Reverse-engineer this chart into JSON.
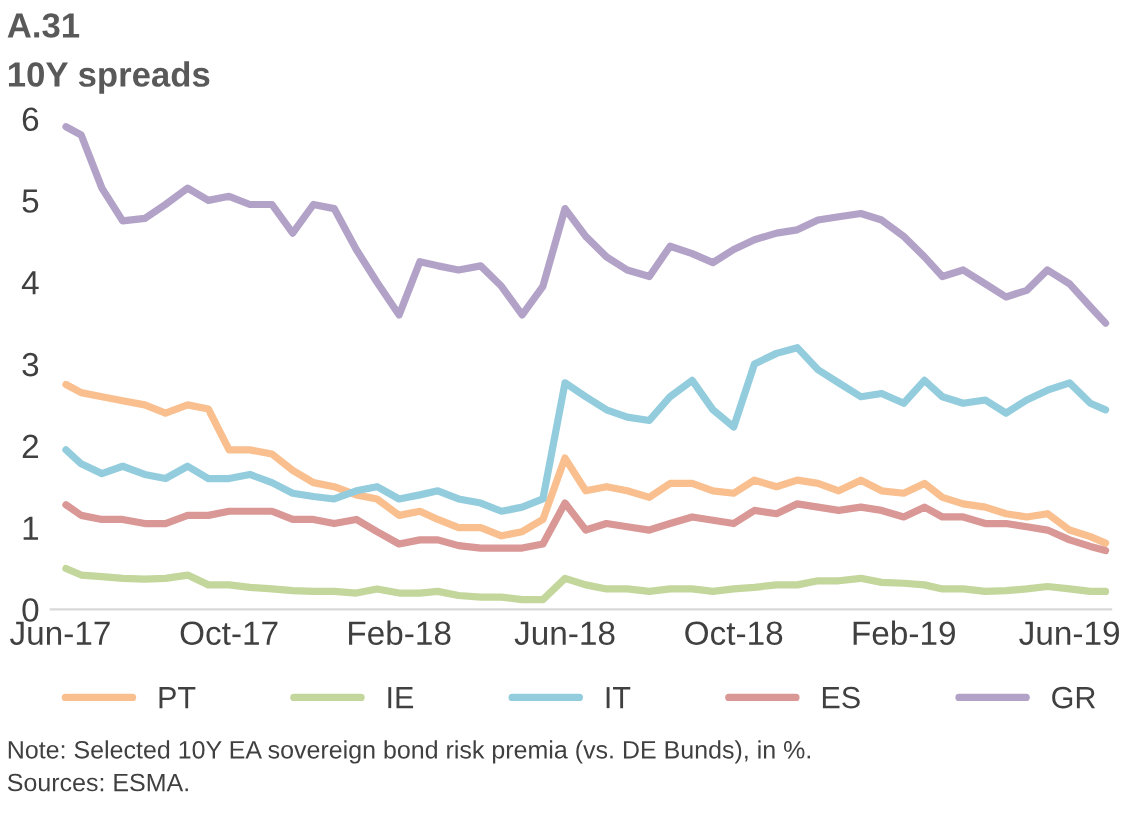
{
  "chart_data": {
    "type": "line",
    "title": "A.31",
    "subtitle": "10Y spreads",
    "x": [
      "2017-06-05",
      "2017-06-16",
      "2017-07-01",
      "2017-07-16",
      "2017-08-01",
      "2017-08-16",
      "2017-09-01",
      "2017-09-16",
      "2017-10-01",
      "2017-10-16",
      "2017-11-01",
      "2017-11-16",
      "2017-12-01",
      "2017-12-16",
      "2018-01-01",
      "2018-01-16",
      "2018-02-01",
      "2018-02-16",
      "2018-03-01",
      "2018-03-16",
      "2018-04-01",
      "2018-04-16",
      "2018-05-01",
      "2018-05-16",
      "2018-06-01",
      "2018-06-16",
      "2018-07-01",
      "2018-07-16",
      "2018-08-01",
      "2018-08-16",
      "2018-09-01",
      "2018-09-16",
      "2018-10-01",
      "2018-10-16",
      "2018-11-01",
      "2018-11-16",
      "2018-12-01",
      "2018-12-16",
      "2019-01-01",
      "2019-01-16",
      "2019-02-01",
      "2019-02-16",
      "2019-03-01",
      "2019-03-16",
      "2019-04-01",
      "2019-04-16",
      "2019-05-01",
      "2019-05-16",
      "2019-06-01",
      "2019-06-16",
      "2019-06-27"
    ],
    "series": [
      {
        "name": "PT",
        "color": "#f9bf8f",
        "values": [
          2.75,
          2.65,
          2.6,
          2.55,
          2.5,
          2.4,
          2.5,
          2.45,
          1.95,
          1.95,
          1.9,
          1.7,
          1.55,
          1.5,
          1.4,
          1.35,
          1.15,
          1.2,
          1.1,
          1.0,
          1.0,
          0.9,
          0.95,
          1.1,
          1.85,
          1.45,
          1.5,
          1.45,
          1.37,
          1.54,
          1.54,
          1.45,
          1.42,
          1.58,
          1.5,
          1.58,
          1.54,
          1.45,
          1.58,
          1.45,
          1.42,
          1.54,
          1.37,
          1.29,
          1.25,
          1.17,
          1.13,
          1.17,
          0.97,
          0.89,
          0.81
        ]
      },
      {
        "name": "IE",
        "color": "#c3d69b",
        "values": [
          0.5,
          0.42,
          0.4,
          0.38,
          0.37,
          0.38,
          0.42,
          0.3,
          0.3,
          0.27,
          0.25,
          0.23,
          0.22,
          0.22,
          0.2,
          0.25,
          0.2,
          0.2,
          0.22,
          0.17,
          0.15,
          0.15,
          0.12,
          0.12,
          0.38,
          0.3,
          0.25,
          0.25,
          0.22,
          0.25,
          0.25,
          0.22,
          0.25,
          0.27,
          0.3,
          0.3,
          0.35,
          0.35,
          0.38,
          0.33,
          0.32,
          0.3,
          0.25,
          0.25,
          0.22,
          0.23,
          0.25,
          0.28,
          0.25,
          0.22,
          0.22
        ]
      },
      {
        "name": "IT",
        "color": "#93cddd",
        "values": [
          1.95,
          1.78,
          1.66,
          1.75,
          1.65,
          1.6,
          1.75,
          1.6,
          1.6,
          1.65,
          1.55,
          1.42,
          1.38,
          1.35,
          1.45,
          1.5,
          1.35,
          1.4,
          1.45,
          1.35,
          1.3,
          1.2,
          1.25,
          1.35,
          2.77,
          2.6,
          2.44,
          2.35,
          2.31,
          2.6,
          2.8,
          2.44,
          2.23,
          3.0,
          3.13,
          3.2,
          2.93,
          2.77,
          2.6,
          2.64,
          2.52,
          2.8,
          2.6,
          2.52,
          2.56,
          2.4,
          2.56,
          2.68,
          2.77,
          2.52,
          2.44
        ]
      },
      {
        "name": "ES",
        "color": "#d99795",
        "values": [
          1.28,
          1.15,
          1.1,
          1.1,
          1.05,
          1.05,
          1.15,
          1.15,
          1.2,
          1.2,
          1.2,
          1.1,
          1.1,
          1.05,
          1.1,
          0.95,
          0.8,
          0.85,
          0.85,
          0.78,
          0.75,
          0.75,
          0.75,
          0.8,
          1.3,
          0.97,
          1.05,
          1.01,
          0.97,
          1.05,
          1.13,
          1.09,
          1.05,
          1.21,
          1.17,
          1.29,
          1.25,
          1.21,
          1.25,
          1.21,
          1.13,
          1.25,
          1.13,
          1.13,
          1.05,
          1.05,
          1.01,
          0.97,
          0.85,
          0.77,
          0.72
        ]
      },
      {
        "name": "GR",
        "color": "#b3a2c7",
        "values": [
          5.9,
          5.8,
          5.15,
          4.75,
          4.78,
          4.95,
          5.15,
          5.0,
          5.05,
          4.95,
          4.95,
          4.6,
          4.95,
          4.9,
          4.4,
          4.0,
          3.6,
          4.25,
          4.2,
          4.15,
          4.2,
          3.95,
          3.6,
          3.95,
          4.9,
          4.56,
          4.31,
          4.15,
          4.07,
          4.44,
          4.35,
          4.24,
          4.4,
          4.52,
          4.6,
          4.64,
          4.76,
          4.8,
          4.84,
          4.76,
          4.56,
          4.31,
          4.07,
          4.15,
          3.98,
          3.82,
          3.9,
          4.15,
          3.98,
          3.7,
          3.5
        ]
      }
    ],
    "xlim": [
      "2017-05-25",
      "2019-07-01"
    ],
    "xticks": [
      {
        "value": "2017-06-01",
        "label": "Jun-17"
      },
      {
        "value": "2017-10-01",
        "label": "Oct-17"
      },
      {
        "value": "2018-02-01",
        "label": "Feb-18"
      },
      {
        "value": "2018-06-01",
        "label": "Jun-18"
      },
      {
        "value": "2018-10-01",
        "label": "Oct-18"
      },
      {
        "value": "2019-02-01",
        "label": "Feb-19"
      },
      {
        "value": "2019-06-01",
        "label": "Jun-19"
      }
    ],
    "ylim": [
      0,
      6
    ],
    "yticks": [
      0,
      1,
      2,
      3,
      4,
      5,
      6
    ],
    "grid": false,
    "legend": "bottom",
    "marker": "none",
    "line_style": "solid",
    "annotations": [
      "Note: Selected 10Y EA sovereign bond risk premia (vs. DE Bunds), in %.",
      "Sources: ESMA."
    ]
  }
}
